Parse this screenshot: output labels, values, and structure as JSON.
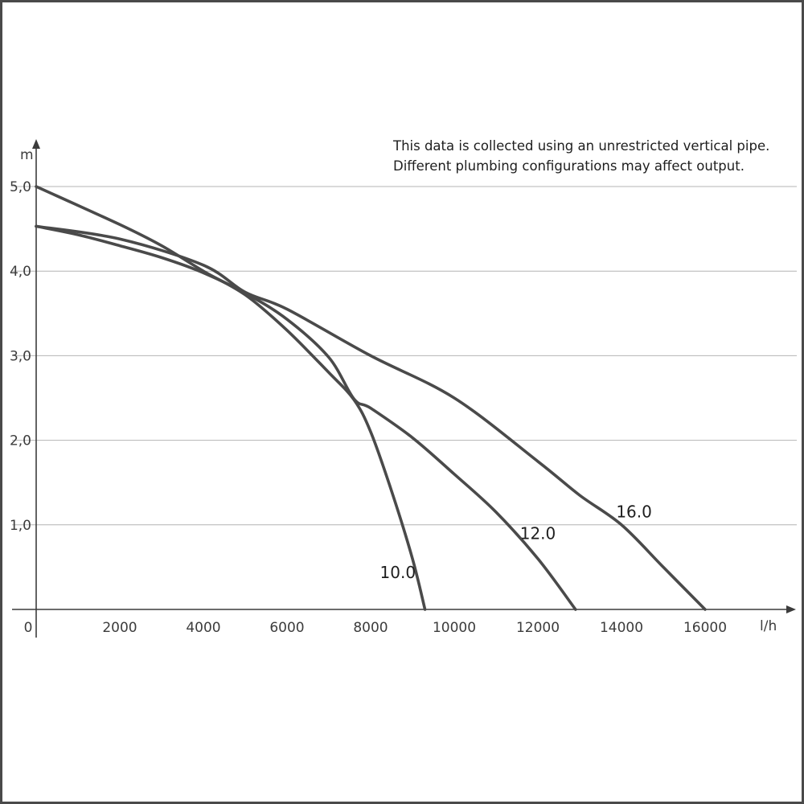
{
  "chart_data": {
    "type": "line",
    "xlabel": "l/h",
    "ylabel": "m",
    "xlim": [
      0,
      17500
    ],
    "ylim": [
      0,
      5.0
    ],
    "x_ticks": [
      "0",
      "2000",
      "4000",
      "6000",
      "8000",
      "10000",
      "12000",
      "14000",
      "16000"
    ],
    "x_tick_values": [
      0,
      2000,
      4000,
      6000,
      8000,
      10000,
      12000,
      14000,
      16000
    ],
    "y_ticks": [
      "1,0",
      "2,0",
      "3,0",
      "4,0",
      "5,0"
    ],
    "y_tick_values": [
      1,
      2,
      3,
      4,
      5
    ],
    "grid": "horizontal",
    "annotation": [
      "This data is collected using an unrestricted vertical pipe.",
      "Different plumbing configurations may affect output."
    ],
    "series": [
      {
        "name": "10.0",
        "x": [
          0,
          2000,
          3000,
          4000,
          5000,
          6000,
          7000,
          7600,
          8000,
          8500,
          9000,
          9300
        ],
        "y": [
          5.0,
          4.55,
          4.3,
          4.0,
          3.72,
          3.3,
          2.8,
          2.48,
          2.1,
          1.4,
          0.6,
          0.0
        ]
      },
      {
        "name": "12.0",
        "x": [
          0,
          1000,
          2000,
          3000,
          4000,
          5000,
          6000,
          7000,
          7600,
          8000,
          9000,
          10000,
          11000,
          12000,
          12900
        ],
        "y": [
          4.53,
          4.43,
          4.3,
          4.16,
          3.98,
          3.74,
          3.43,
          2.98,
          2.49,
          2.38,
          2.03,
          1.6,
          1.15,
          0.6,
          0.0
        ]
      },
      {
        "name": "16.0",
        "x": [
          0,
          2000,
          4000,
          5000,
          6000,
          8000,
          10000,
          12000,
          13000,
          14000,
          15000,
          16000
        ],
        "y": [
          4.53,
          4.38,
          4.07,
          3.75,
          3.55,
          3.0,
          2.5,
          1.75,
          1.35,
          1.0,
          0.5,
          0.0
        ]
      }
    ]
  }
}
